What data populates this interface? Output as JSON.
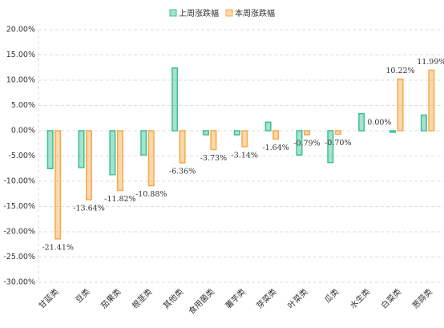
{
  "chart_data": {
    "type": "bar",
    "categories": [
      "甘蓝类",
      "豆类",
      "茄果类",
      "根茎类",
      "其他类",
      "食用菌类",
      "薯芋类",
      "芽菜类",
      "叶菜类",
      "瓜类",
      "水生类",
      "白菜类",
      "葱蒜类"
    ],
    "series": [
      {
        "name": "上周涨跌幅",
        "color": "#3cbf95",
        "values": [
          -7.5,
          -7.3,
          -8.7,
          -4.8,
          12.4,
          -0.8,
          -0.8,
          1.7,
          -4.8,
          -6.3,
          3.4,
          -0.3,
          3.1
        ]
      },
      {
        "name": "本周涨跌幅",
        "color": "#f5a94a",
        "values": [
          -21.41,
          -13.64,
          -11.82,
          -10.88,
          -6.36,
          -3.73,
          -3.14,
          -1.64,
          -0.79,
          -0.7,
          0.0,
          10.22,
          11.99
        ],
        "value_labels": [
          "-21.41%",
          "-13.64%",
          "-11.82%",
          "-10.88%",
          "-6.36%",
          "-3.73%",
          "-3.14%",
          "-1.64%",
          "-0.79%",
          "-0.70%",
          "0.00%",
          "10.22%",
          "11.99%"
        ]
      }
    ],
    "ylim": [
      -30,
      20
    ],
    "yticks": [
      {
        "value": -30,
        "label": "-30.00%"
      },
      {
        "value": -25,
        "label": "-25.00%"
      },
      {
        "value": -20,
        "label": "-20.00%"
      },
      {
        "value": -15,
        "label": "-15.00%"
      },
      {
        "value": -10,
        "label": "-10.00%"
      },
      {
        "value": -5,
        "label": "-5.00%"
      },
      {
        "value": 0,
        "label": "0.00%"
      },
      {
        "value": 5,
        "label": "5.00%"
      },
      {
        "value": 10,
        "label": "10.00%"
      },
      {
        "value": 15,
        "label": "15.00%"
      },
      {
        "value": 20,
        "label": "20.00%"
      }
    ],
    "grid": true,
    "legend": "top"
  }
}
